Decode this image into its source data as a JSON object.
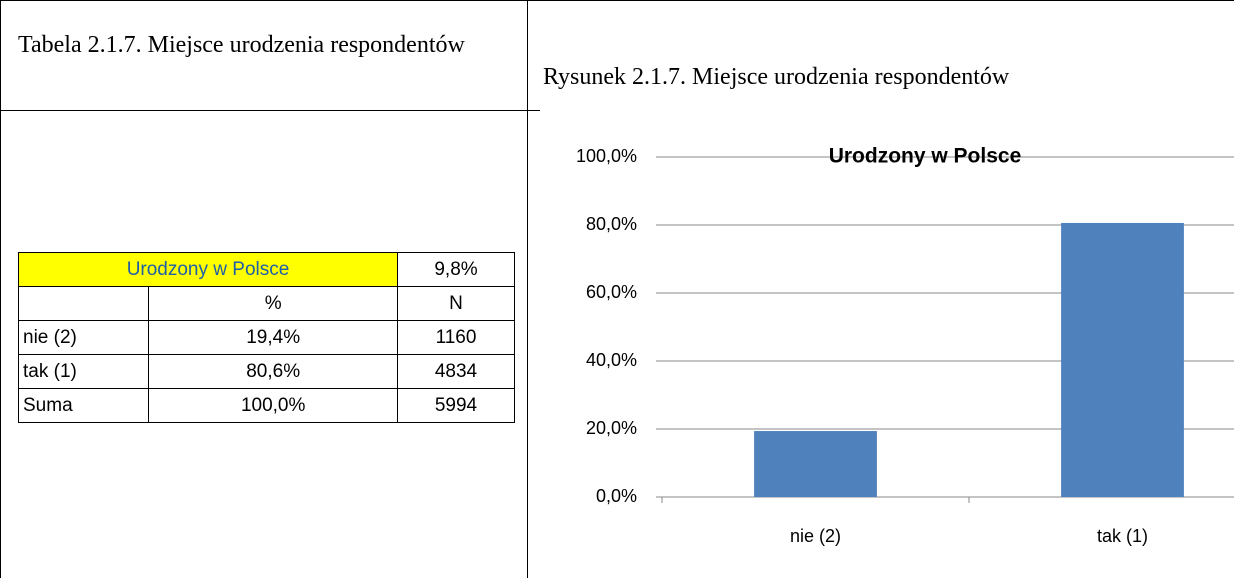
{
  "left": {
    "caption": "Tabela 2.1.7. Miejsce urodzenia respondentów",
    "table": {
      "rows": [
        [
          "Urodzony w Polsce",
          "9,8%"
        ],
        [
          "",
          "%",
          "N"
        ],
        [
          "nie (2)",
          "19,4%",
          "1160"
        ],
        [
          "tak (1)",
          "80,6%",
          "4834"
        ],
        [
          "Suma",
          "100,0%",
          "5994"
        ]
      ]
    }
  },
  "right": {
    "caption": "Rysunek 2.1.7. Miejsce urodzenia respondentów"
  },
  "chart_data": {
    "type": "bar",
    "title": "Urodzony w Polsce",
    "categories": [
      "nie (2)",
      "tak (1)"
    ],
    "values": [
      19.4,
      80.6
    ],
    "color": "#4f81bd",
    "ylim": [
      0,
      100
    ],
    "yticks": [
      {
        "value": 0,
        "label": "0,0%"
      },
      {
        "value": 20,
        "label": "20,0%"
      },
      {
        "value": 40,
        "label": "40,0%"
      },
      {
        "value": 60,
        "label": "60,0%"
      },
      {
        "value": 80,
        "label": "80,0%"
      },
      {
        "value": 100,
        "label": "100,0%"
      }
    ],
    "grid": true
  }
}
